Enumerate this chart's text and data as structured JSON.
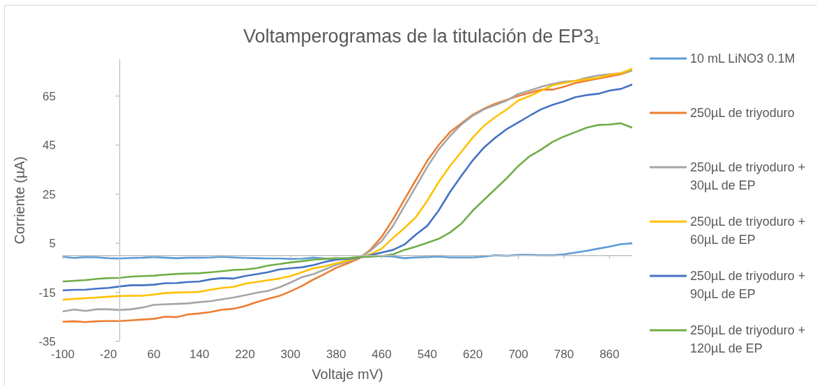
{
  "chart_data": {
    "type": "line",
    "title": "Voltamperogramas de la titulación de EP3₁",
    "xlabel": "Voltaje mV)",
    "ylabel": "Corriente (µA)",
    "x": [
      -100,
      -80,
      -60,
      -40,
      -20,
      0,
      20,
      40,
      60,
      80,
      100,
      120,
      140,
      160,
      180,
      200,
      220,
      240,
      260,
      280,
      300,
      320,
      340,
      360,
      380,
      400,
      420,
      440,
      460,
      480,
      500,
      520,
      540,
      560,
      580,
      600,
      620,
      640,
      660,
      680,
      700,
      720,
      740,
      760,
      780,
      800,
      820,
      840,
      860,
      880,
      900
    ],
    "series": [
      {
        "name": "10 mL LiNO3 0.1M",
        "color": "#5b9bd5",
        "values": [
          -0.5,
          -1.0,
          -0.6,
          -0.7,
          -1.1,
          -1.2,
          -1.0,
          -0.9,
          -0.6,
          -0.9,
          -1.1,
          -0.9,
          -0.9,
          -0.8,
          -0.5,
          -0.8,
          -1.0,
          -1.1,
          -1.2,
          -1.2,
          -1.4,
          -1.3,
          -0.9,
          -1.2,
          -1.4,
          -1.2,
          -0.8,
          -0.4,
          -0.2,
          -0.4,
          -1.1,
          -0.8,
          -0.6,
          -0.4,
          -0.8,
          -0.8,
          -0.8,
          -0.4,
          0.1,
          -0.1,
          0.3,
          0.3,
          0.1,
          0.1,
          0.5,
          1.2,
          1.9,
          2.8,
          3.6,
          4.6,
          5.0
        ]
      },
      {
        "name": "250µL de triyoduro",
        "color": "#ed7d31",
        "values": [
          -27.0,
          -26.8,
          -27.1,
          -26.8,
          -26.7,
          -26.7,
          -26.4,
          -26.1,
          -25.8,
          -24.9,
          -25.1,
          -24.0,
          -23.6,
          -23.0,
          -22.1,
          -21.7,
          -20.6,
          -19.0,
          -17.7,
          -16.5,
          -14.6,
          -12.4,
          -9.8,
          -7.5,
          -5.0,
          -3.2,
          -1.2,
          2.3,
          7.6,
          14.8,
          22.8,
          30.8,
          38.6,
          45.0,
          50.3,
          53.9,
          57.4,
          59.9,
          61.9,
          63.5,
          65.0,
          66.3,
          67.6,
          67.6,
          68.8,
          70.3,
          71.2,
          72.1,
          73.0,
          73.9,
          75.4
        ]
      },
      {
        "name": "250µL de triyoduro + 30µL de EP",
        "color": "#a5a5a5",
        "values": [
          -22.8,
          -22.0,
          -22.6,
          -21.9,
          -21.9,
          -22.2,
          -21.9,
          -21.2,
          -20.1,
          -19.9,
          -19.7,
          -19.5,
          -19.0,
          -18.6,
          -17.8,
          -17.1,
          -16.2,
          -15.2,
          -14.4,
          -13.0,
          -11.0,
          -8.8,
          -7.6,
          -5.7,
          -3.8,
          -2.5,
          -0.8,
          1.9,
          5.9,
          12.1,
          20.1,
          28.1,
          36.1,
          43.2,
          48.7,
          53.4,
          57.0,
          59.6,
          61.4,
          63.2,
          65.9,
          67.2,
          68.8,
          69.9,
          70.8,
          71.2,
          72.5,
          73.4,
          73.9,
          74.3,
          75.4
        ]
      },
      {
        "name": "250µL de triyoduro + 60µL de EP",
        "color": "#ffc000",
        "values": [
          -18.0,
          -17.7,
          -17.4,
          -17.1,
          -16.8,
          -16.5,
          -16.4,
          -16.4,
          -15.9,
          -15.3,
          -15.1,
          -15.0,
          -14.8,
          -13.9,
          -13.2,
          -12.8,
          -11.5,
          -10.8,
          -10.1,
          -9.4,
          -8.4,
          -6.8,
          -5.2,
          -4.4,
          -3.2,
          -2.1,
          -0.6,
          0.5,
          2.8,
          7.2,
          11.2,
          15.6,
          22.3,
          29.9,
          36.5,
          42.3,
          48.1,
          53.0,
          56.5,
          59.6,
          63.2,
          65.0,
          67.2,
          69.4,
          70.3,
          71.2,
          71.8,
          72.5,
          73.6,
          74.3,
          76.1
        ]
      },
      {
        "name": "250µL de triyoduro + 90µL de EP",
        "color": "#4472c4",
        "values": [
          -14.2,
          -14.0,
          -13.9,
          -13.5,
          -13.2,
          -12.6,
          -12.1,
          -12.1,
          -11.9,
          -11.3,
          -11.2,
          -10.8,
          -10.6,
          -9.7,
          -9.2,
          -9.4,
          -8.4,
          -7.6,
          -6.8,
          -5.7,
          -5.2,
          -4.8,
          -3.9,
          -2.6,
          -1.7,
          -1.4,
          -0.8,
          0.1,
          1.2,
          2.3,
          4.5,
          8.5,
          12.1,
          18.3,
          25.9,
          32.5,
          38.8,
          44.1,
          48.1,
          51.6,
          54.3,
          57.0,
          59.6,
          61.4,
          62.8,
          64.5,
          65.4,
          65.9,
          67.2,
          67.9,
          69.7
        ]
      },
      {
        "name": "250µL de triyoduro + 120µL de EP",
        "color": "#70ad47",
        "values": [
          -10.6,
          -10.3,
          -10.0,
          -9.5,
          -9.2,
          -9.1,
          -8.6,
          -8.4,
          -8.2,
          -7.8,
          -7.5,
          -7.3,
          -7.2,
          -6.8,
          -6.4,
          -5.9,
          -5.7,
          -5.2,
          -4.1,
          -3.5,
          -2.8,
          -2.3,
          -1.7,
          -1.4,
          -1.1,
          -1.1,
          -0.6,
          -0.4,
          -0.2,
          0.5,
          2.3,
          3.6,
          5.2,
          6.8,
          9.4,
          13.0,
          18.3,
          22.8,
          27.2,
          31.6,
          36.5,
          40.5,
          43.2,
          46.3,
          48.5,
          50.3,
          52.1,
          53.2,
          53.4,
          53.9,
          52.1
        ]
      }
    ],
    "xlim": [
      -100,
      900
    ],
    "xticks": [
      -100,
      -20,
      60,
      140,
      220,
      300,
      380,
      460,
      540,
      620,
      700,
      780,
      860
    ],
    "ylim": [
      -35,
      80
    ],
    "yticks": [
      -35,
      -15,
      5,
      25,
      45,
      65
    ],
    "legend": "right",
    "marker": "none",
    "line_style": "solid"
  }
}
